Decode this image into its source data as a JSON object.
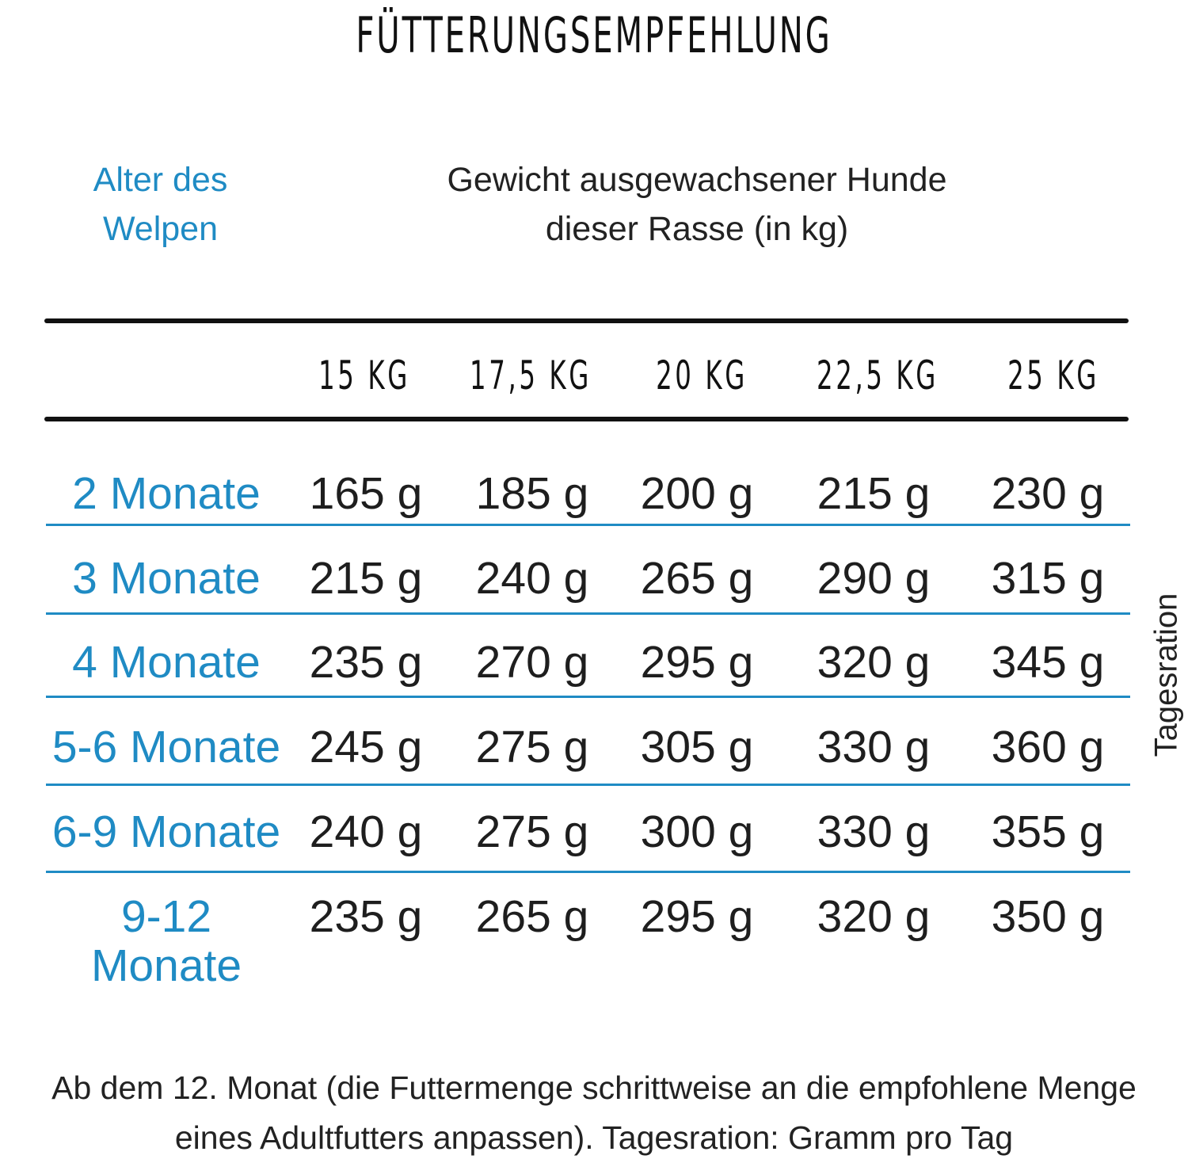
{
  "title": "FÜTTERUNGSEMPFEHLUNG",
  "header": {
    "age_line1": "Alter des",
    "age_line2": "Welpen",
    "weight_line1": "Gewicht ausgewachsener Hunde",
    "weight_line2": "dieser Rasse (in kg)"
  },
  "columns": [
    "15 KG",
    "17,5 KG",
    "20 KG",
    "22,5 KG",
    "25 KG"
  ],
  "rows": [
    {
      "label": "2 Monate",
      "values": [
        "165 g",
        "185 g",
        "200 g",
        "215 g",
        "230 g"
      ]
    },
    {
      "label": "3 Monate",
      "values": [
        "215 g",
        "240 g",
        "265 g",
        "290 g",
        "315 g"
      ]
    },
    {
      "label": "4 Monate",
      "values": [
        "235 g",
        "270 g",
        "295 g",
        "320 g",
        "345 g"
      ]
    },
    {
      "label": "5-6 Monate",
      "values": [
        "245 g",
        "275 g",
        "305 g",
        "330 g",
        "360 g"
      ]
    },
    {
      "label": "6-9 Monate",
      "values": [
        "240 g",
        "275 g",
        "300 g",
        "330 g",
        "355 g"
      ]
    },
    {
      "label": "9-12 Monate",
      "values": [
        "235 g",
        "265 g",
        "295 g",
        "320 g",
        "350 g"
      ]
    }
  ],
  "side_label": "Tagesration",
  "footnote": {
    "line1": "Ab dem 12. Monat (die Futtermenge schrittweise an die empfohlene Menge",
    "line2": "eines Adultfutters anpassen). Tagesration: Gramm pro Tag"
  },
  "colors": {
    "accent": "#1f8bc4",
    "text": "#1e1e1e"
  }
}
